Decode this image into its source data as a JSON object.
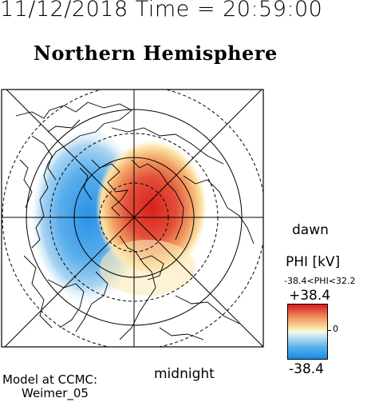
{
  "header": {
    "date": "11/12/2018",
    "time_text": "Time = 20:59:00"
  },
  "title": "Northern Hemisphere",
  "map": {
    "projection": "polar",
    "pole": "north",
    "dawn_label": "dawn",
    "midnight_label": "midnight",
    "grid_lines": "on",
    "positive_potential_side": "dawn",
    "negative_potential_side": "dusk"
  },
  "colorbar": {
    "variable_label": "PHI [kV]",
    "range_label": "-38.4<PHI<32.2",
    "max_label": "+38.4",
    "zero_label": "0",
    "min_label": "-38.4",
    "max_value": 38.4,
    "min_value": -38.4,
    "actual_min": -38.4,
    "actual_max": 32.2,
    "colors": {
      "max": "#d81c1c",
      "mid": "#f8f8e8",
      "min": "#1a8ce6"
    }
  },
  "model": {
    "line1": "Model at CCMC:",
    "line2": "Weimer_05"
  }
}
